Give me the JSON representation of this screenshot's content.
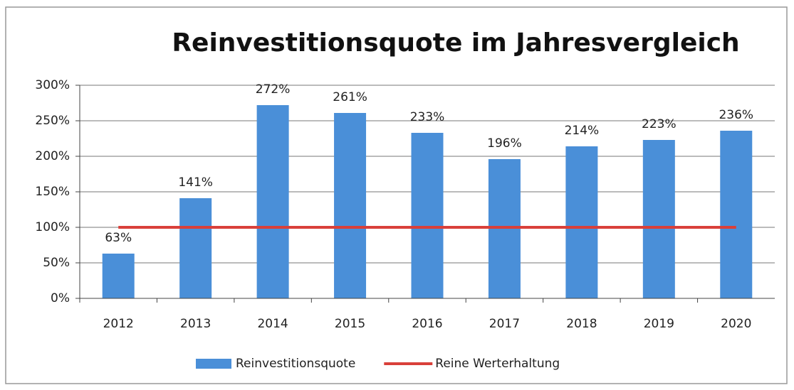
{
  "chart_data": {
    "type": "bar",
    "title": "Reinvestitionsquote im Jahresvergleich",
    "categories": [
      "2012",
      "2013",
      "2014",
      "2015",
      "2016",
      "2017",
      "2018",
      "2019",
      "2020"
    ],
    "series": [
      {
        "name": "Reinvestitionsquote",
        "type": "bar",
        "color": "#4a8fd8",
        "values": [
          63,
          141,
          272,
          261,
          233,
          196,
          214,
          223,
          236
        ],
        "value_labels": [
          "63%",
          "141%",
          "272%",
          "261%",
          "233%",
          "196%",
          "214%",
          "223%",
          "236%"
        ]
      },
      {
        "name": "Reine Werterhaltung",
        "type": "line",
        "color": "#d9403a",
        "values": [
          100,
          100,
          100,
          100,
          100,
          100,
          100,
          100,
          100
        ]
      }
    ],
    "ylim": [
      0,
      300
    ],
    "yticks": [
      {
        "value": 0,
        "label": "0%"
      },
      {
        "value": 50,
        "label": "50%"
      },
      {
        "value": 100,
        "label": "100%"
      },
      {
        "value": 150,
        "label": "150%"
      },
      {
        "value": 200,
        "label": "200%"
      },
      {
        "value": 250,
        "label": "250%"
      },
      {
        "value": 300,
        "label": "300%"
      }
    ],
    "grid": true,
    "legend": "bottom"
  }
}
